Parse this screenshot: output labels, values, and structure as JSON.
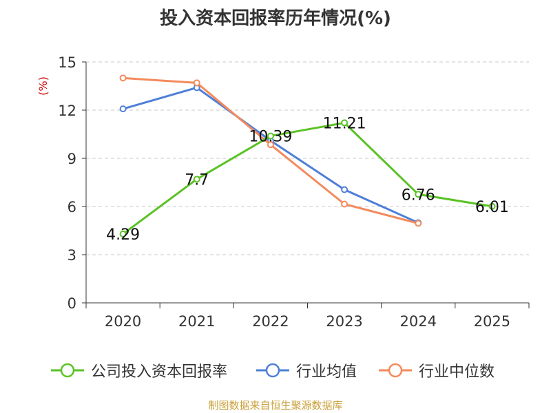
{
  "chart_data": {
    "type": "line",
    "title": "投入资本回报率历年情况(%)",
    "ylabel": "(%)",
    "xlabel": "",
    "categories": [
      "2020",
      "2021",
      "2022",
      "2023",
      "2024",
      "2025"
    ],
    "ylim": [
      0,
      15
    ],
    "yticks": [
      0,
      3,
      6,
      9,
      12,
      15
    ],
    "grid": true,
    "legend_position": "bottom",
    "series": [
      {
        "name": "公司投入资本回报率",
        "color": "#5bc225",
        "values": [
          4.29,
          7.7,
          10.39,
          11.21,
          6.76,
          6.01
        ],
        "show_labels": true
      },
      {
        "name": "行业均值",
        "color": "#4e7fd8",
        "values": [
          12.08,
          13.4,
          10.1,
          7.05,
          4.99,
          null
        ],
        "show_labels": false
      },
      {
        "name": "行业中位数",
        "color": "#f48a5c",
        "values": [
          14.0,
          13.7,
          9.85,
          6.15,
          4.95,
          null
        ],
        "show_labels": false
      }
    ],
    "data_labels": [
      "4.29",
      "7.7",
      "10.39",
      "11.21",
      "6.76",
      "6.01"
    ],
    "source": "制图数据来自恒生聚源数据库"
  }
}
